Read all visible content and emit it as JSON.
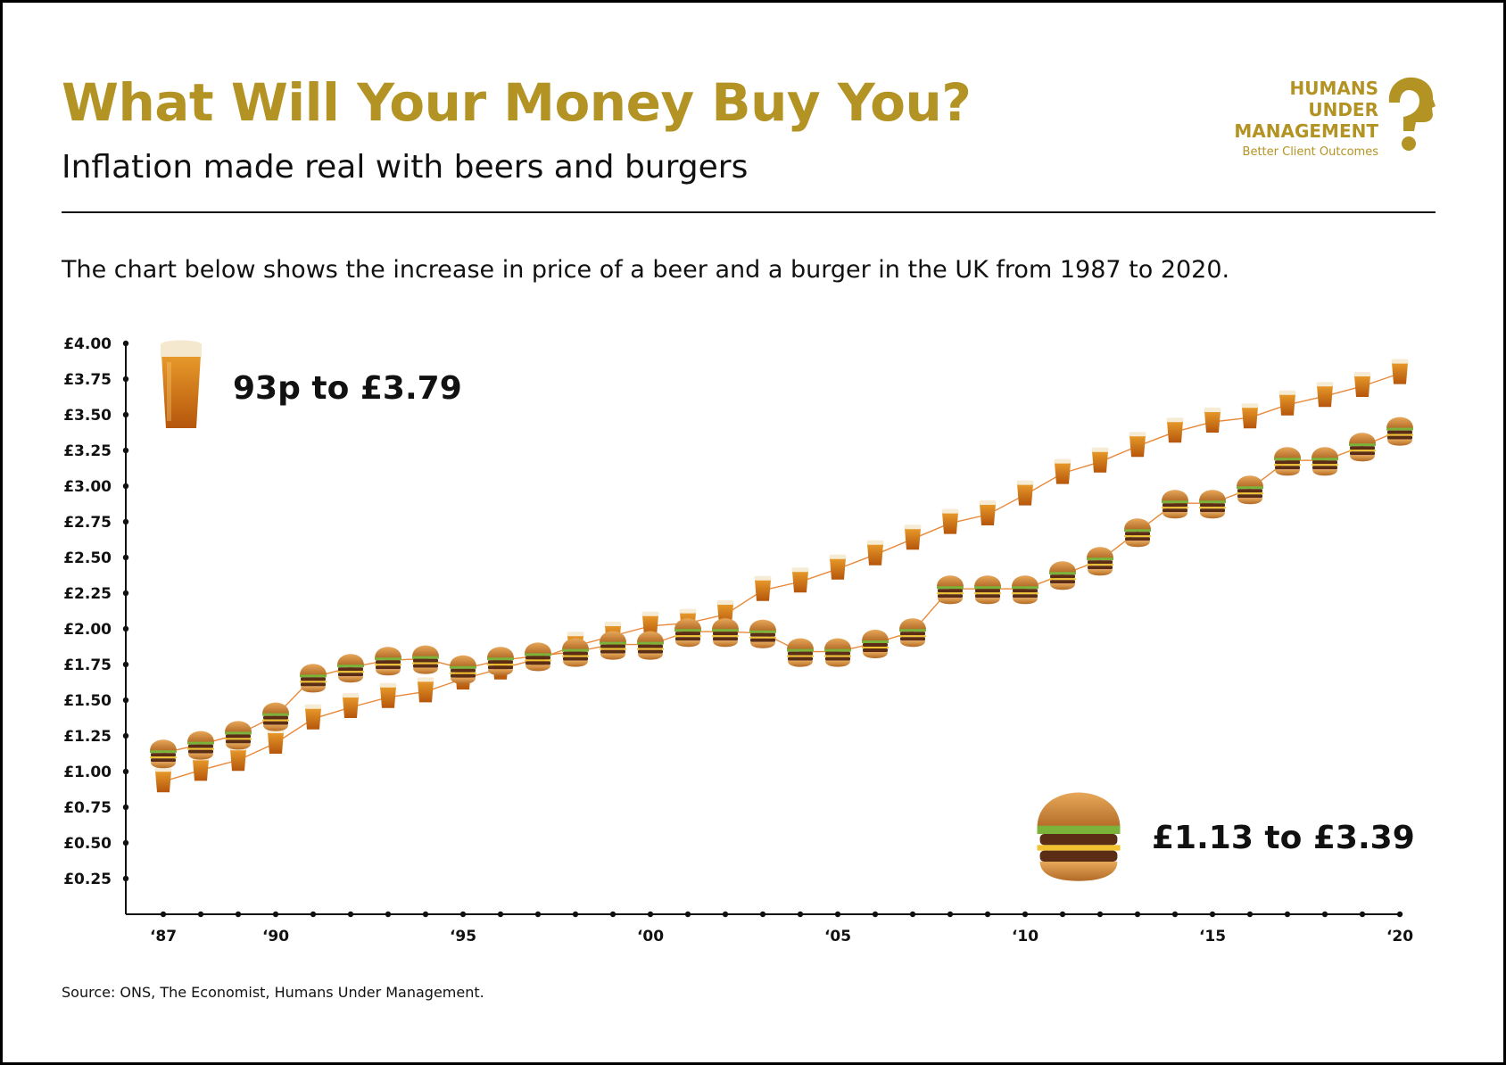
{
  "header": {
    "title": "What Will Your Money Buy You?",
    "subtitle": "Inflation made real with beers and burgers",
    "description": "The chart below shows the increase in price of a beer and a burger in the UK from 1987 to 2020."
  },
  "logo": {
    "line1": "HUMANS",
    "line2": "UNDER",
    "line3": "MANAGEMENT",
    "tagline": "Better Client Outcomes"
  },
  "source": "Source: ONS, The Economist, Humans Under Management.",
  "colors": {
    "brand_gold": "#b39324",
    "line_orange": "#e8893a",
    "text": "#111111"
  },
  "annotations": {
    "beer": "93p to £3.79",
    "burger": "£1.13 to £3.39"
  },
  "chart_data": {
    "type": "line",
    "title": "What Will Your Money Buy You?",
    "xlabel": "",
    "ylabel": "",
    "ylim": [
      0,
      4
    ],
    "yticks": [
      0.25,
      0.5,
      0.75,
      1.0,
      1.25,
      1.5,
      1.75,
      2.0,
      2.25,
      2.5,
      2.75,
      3.0,
      3.25,
      3.5,
      3.75,
      4.0
    ],
    "ytick_labels": [
      "£0.25",
      "£0.50",
      "£0.75",
      "£1.00",
      "£1.25",
      "£1.50",
      "£1.75",
      "£2.00",
      "£2.25",
      "£2.50",
      "£2.75",
      "£3.00",
      "£3.25",
      "£3.50",
      "£3.75",
      "£4.00"
    ],
    "x": [
      1987,
      1988,
      1989,
      1990,
      1991,
      1992,
      1993,
      1994,
      1995,
      1996,
      1997,
      1998,
      1999,
      2000,
      2001,
      2002,
      2003,
      2004,
      2005,
      2006,
      2007,
      2008,
      2009,
      2010,
      2011,
      2012,
      2013,
      2014,
      2015,
      2016,
      2017,
      2018,
      2019,
      2020
    ],
    "xtick_labels": [
      {
        "year": 1987,
        "label": "‘87"
      },
      {
        "year": 1990,
        "label": "‘90"
      },
      {
        "year": 1995,
        "label": "‘95"
      },
      {
        "year": 2000,
        "label": "‘00"
      },
      {
        "year": 2005,
        "label": "‘05"
      },
      {
        "year": 2010,
        "label": "‘10"
      },
      {
        "year": 2015,
        "label": "‘15"
      },
      {
        "year": 2020,
        "label": "‘20"
      }
    ],
    "series": [
      {
        "name": "Beer",
        "icon": "beer-icon",
        "values": [
          0.93,
          1.01,
          1.08,
          1.2,
          1.37,
          1.45,
          1.52,
          1.56,
          1.65,
          1.72,
          1.79,
          1.88,
          1.95,
          2.02,
          2.04,
          2.1,
          2.27,
          2.33,
          2.42,
          2.52,
          2.63,
          2.74,
          2.8,
          2.94,
          3.09,
          3.17,
          3.28,
          3.38,
          3.45,
          3.48,
          3.57,
          3.63,
          3.7,
          3.79
        ]
      },
      {
        "name": "Burger",
        "icon": "burger-icon",
        "values": [
          1.13,
          1.19,
          1.26,
          1.39,
          1.66,
          1.73,
          1.78,
          1.79,
          1.72,
          1.78,
          1.81,
          1.84,
          1.89,
          1.89,
          1.98,
          1.98,
          1.97,
          1.84,
          1.84,
          1.9,
          1.98,
          2.28,
          2.28,
          2.28,
          2.38,
          2.48,
          2.68,
          2.88,
          2.88,
          2.98,
          3.18,
          3.18,
          3.28,
          3.39
        ]
      }
    ]
  }
}
